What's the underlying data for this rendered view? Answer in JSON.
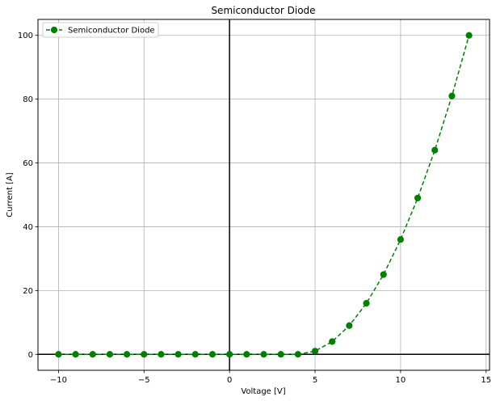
{
  "chart_data": {
    "type": "line",
    "title": "Semiconductor Diode",
    "xlabel": "Voltage [V]",
    "ylabel": "Current [A]",
    "xlim": [
      -11.2,
      15.2
    ],
    "ylim": [
      -5,
      105
    ],
    "xticks": [
      -10,
      -5,
      0,
      5,
      10,
      15
    ],
    "yticks": [
      0,
      20,
      40,
      60,
      80,
      100
    ],
    "grid": true,
    "legend_position": "top-left",
    "reference_lines": {
      "x": 0,
      "y": 0
    },
    "series": [
      {
        "name": "Semiconductor Diode",
        "color": "#008000",
        "linestyle": "dashed",
        "marker": "circle",
        "x": [
          -10,
          -9,
          -8,
          -7,
          -6,
          -5,
          -4,
          -3,
          -2,
          -1,
          0,
          1,
          2,
          3,
          4,
          5,
          6,
          7,
          8,
          9,
          10,
          11,
          12,
          13,
          14
        ],
        "y": [
          0,
          0,
          0,
          0,
          0,
          0,
          0,
          0,
          0,
          0,
          0,
          0,
          0,
          0,
          0,
          1,
          4,
          9,
          16,
          25,
          36,
          49,
          64,
          81,
          100
        ]
      }
    ]
  }
}
